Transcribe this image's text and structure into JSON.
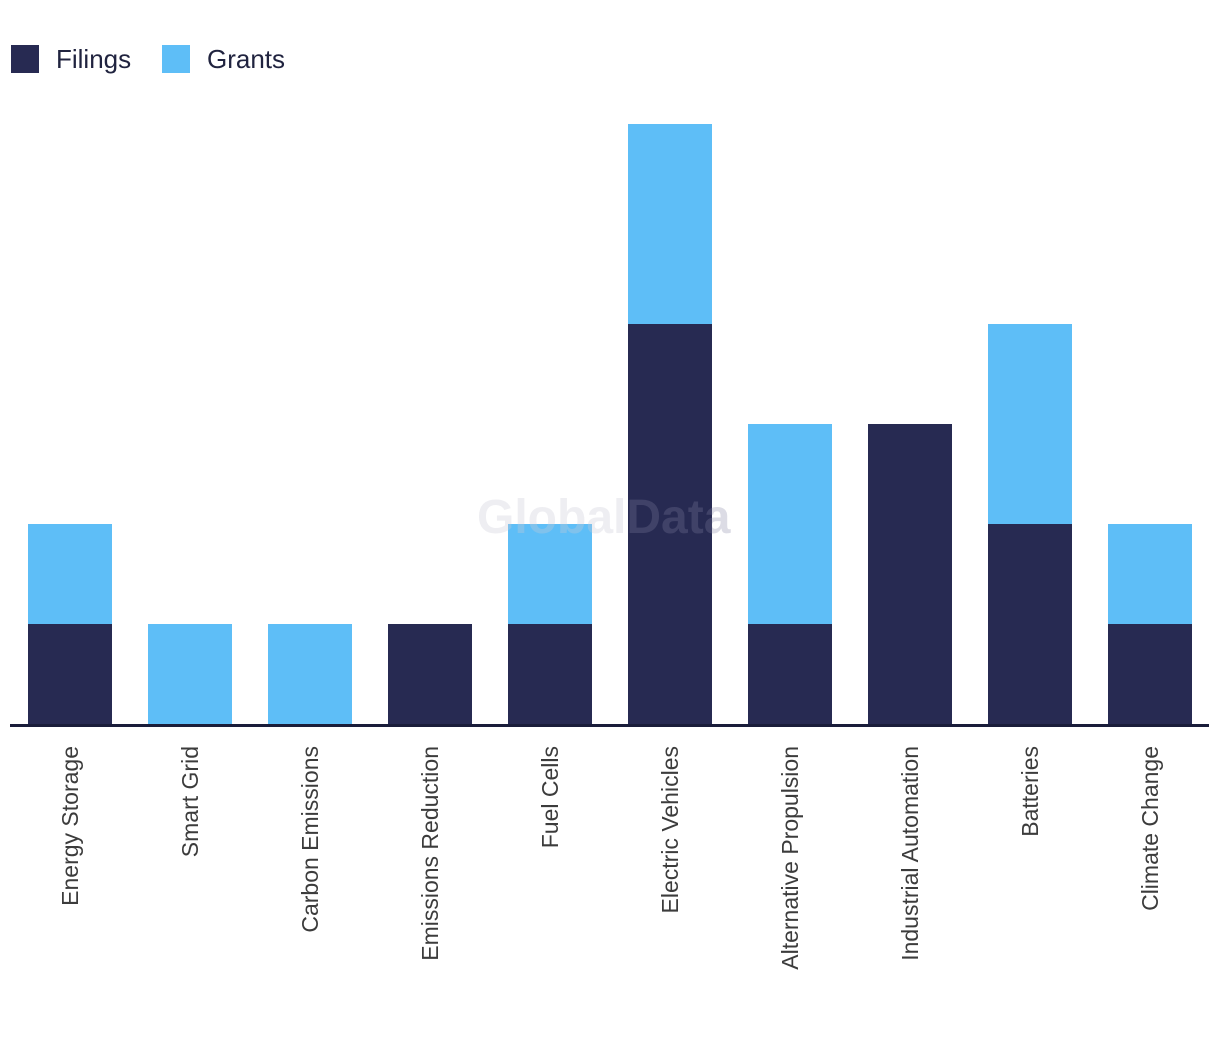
{
  "legend": {
    "items": [
      {
        "label": "Filings"
      },
      {
        "label": "Grants"
      }
    ]
  },
  "watermark": {
    "part1": "Global",
    "part2": "Data"
  },
  "chart_data": {
    "type": "bar",
    "stacked": true,
    "title": "",
    "xlabel": "",
    "ylabel": "",
    "y_axis": "hidden",
    "grid": false,
    "legend_position": "top-left",
    "x_axis_line_color": "#1a1d3a",
    "categories": [
      "Energy Storage",
      "Smart Grid",
      "Carbon Emissions",
      "Emissions Reduction",
      "Fuel Cells",
      "Electric Vehicles",
      "Alternative Propulsion",
      "Industrial Automation",
      "Batteries",
      "Climate Change"
    ],
    "series": [
      {
        "name": "Filings",
        "color": "#272a52",
        "values": [
          1,
          0,
          0,
          1,
          1,
          4,
          1,
          3,
          2,
          1
        ]
      },
      {
        "name": "Grants",
        "color": "#5ebef7",
        "values": [
          1,
          1,
          1,
          0,
          1,
          2,
          2,
          0,
          2,
          1
        ]
      }
    ],
    "ylim": [
      0,
      6.2
    ]
  }
}
